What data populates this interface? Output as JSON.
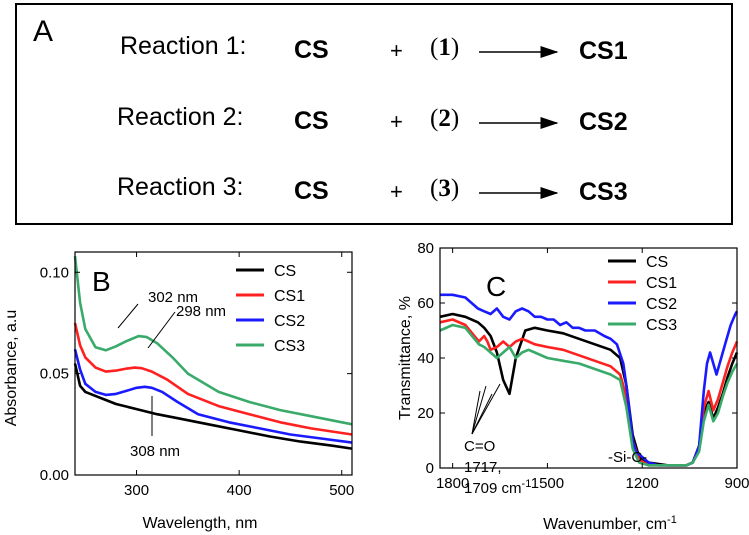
{
  "panel_a": {
    "label": "A",
    "reactions": [
      {
        "name": "Reaction 1:",
        "reactant": "CS",
        "plus": "+",
        "reagent_open": "(",
        "reagent": "1",
        "reagent_close": ")",
        "product": "CS1"
      },
      {
        "name": "Reaction 2:",
        "reactant": "CS",
        "plus": "+",
        "reagent_open": "(",
        "reagent": "2",
        "reagent_close": ")",
        "product": "CS2"
      },
      {
        "name": "Reaction 3:",
        "reactant": "CS",
        "plus": "+",
        "reagent_open": "(",
        "reagent": "3",
        "reagent_close": ")",
        "product": "CS3"
      }
    ]
  },
  "chart_data": [
    {
      "type": "line",
      "panel_label": "B",
      "xlabel": "Wavelength, nm",
      "ylabel": "Absorbance, a.u",
      "xlim": [
        240,
        510
      ],
      "ylim": [
        0,
        0.11
      ],
      "xticks": [
        300,
        400,
        500
      ],
      "yticks": [
        0.0,
        0.05,
        0.1
      ],
      "ytick_labels": [
        "0.00",
        "0.05",
        "0.10"
      ],
      "legend": "top-right",
      "series": [
        {
          "name": "CS",
          "color": "#000000",
          "x": [
            240,
            245,
            250,
            260,
            270,
            280,
            300,
            320,
            340,
            370,
            400,
            430,
            460,
            490,
            510
          ],
          "y": [
            0.055,
            0.044,
            0.041,
            0.039,
            0.037,
            0.035,
            0.0325,
            0.03,
            0.028,
            0.025,
            0.022,
            0.019,
            0.0165,
            0.0145,
            0.013
          ]
        },
        {
          "name": "CS1",
          "color": "#ff2020",
          "x": [
            240,
            245,
            250,
            260,
            270,
            280,
            290,
            298,
            305,
            315,
            330,
            350,
            380,
            410,
            440,
            470,
            510
          ],
          "y": [
            0.075,
            0.064,
            0.058,
            0.053,
            0.051,
            0.0515,
            0.0525,
            0.053,
            0.0527,
            0.051,
            0.047,
            0.04,
            0.034,
            0.03,
            0.026,
            0.023,
            0.02
          ]
        },
        {
          "name": "CS2",
          "color": "#1a1aff",
          "x": [
            240,
            245,
            250,
            260,
            270,
            280,
            290,
            300,
            308,
            315,
            325,
            340,
            360,
            390,
            420,
            450,
            480,
            510
          ],
          "y": [
            0.062,
            0.052,
            0.045,
            0.041,
            0.0395,
            0.04,
            0.0415,
            0.043,
            0.0435,
            0.043,
            0.041,
            0.036,
            0.03,
            0.026,
            0.023,
            0.02,
            0.018,
            0.016
          ]
        },
        {
          "name": "CS3",
          "color": "#3aaa6a",
          "x": [
            240,
            245,
            250,
            260,
            270,
            280,
            290,
            302,
            310,
            320,
            335,
            350,
            380,
            410,
            440,
            470,
            510
          ],
          "y": [
            0.108,
            0.085,
            0.072,
            0.063,
            0.0615,
            0.0635,
            0.066,
            0.0685,
            0.068,
            0.065,
            0.058,
            0.05,
            0.041,
            0.036,
            0.032,
            0.029,
            0.025
          ]
        }
      ],
      "annotations": [
        {
          "text": "302 nm",
          "x": 302,
          "y": 0.0685
        },
        {
          "text": "298 nm",
          "x": 298,
          "y": 0.053
        },
        {
          "text": "308 nm",
          "x": 308,
          "y": 0.0435
        }
      ]
    },
    {
      "type": "line",
      "panel_label": "C",
      "xlabel": "Wavenumber, cm",
      "xlabel_sup": "-1",
      "ylabel": "Transmittance, %",
      "xlim": [
        1840,
        900
      ],
      "ylim": [
        0,
        80
      ],
      "xticks": [
        1800,
        1500,
        1200,
        900
      ],
      "yticks": [
        0,
        20,
        40,
        60,
        80
      ],
      "legend": "top-right",
      "series": [
        {
          "name": "CS",
          "color": "#000000",
          "x": [
            1840,
            1800,
            1760,
            1720,
            1700,
            1680,
            1660,
            1640,
            1620,
            1600,
            1570,
            1540,
            1500,
            1450,
            1400,
            1350,
            1300,
            1270,
            1250,
            1230,
            1210,
            1180,
            1120,
            1080,
            1060,
            1040,
            1020,
            1005,
            990,
            975,
            960,
            945,
            930,
            915,
            900
          ],
          "y": [
            55,
            56,
            55,
            53,
            51,
            48,
            42,
            32,
            27,
            40,
            50,
            51,
            50,
            49,
            47,
            45,
            43,
            40,
            30,
            12,
            4,
            2,
            1,
            1,
            1,
            2,
            8,
            20,
            24,
            18,
            22,
            27,
            33,
            38,
            42
          ]
        },
        {
          "name": "CS1",
          "color": "#ff2020",
          "x": [
            1840,
            1800,
            1760,
            1717,
            1700,
            1690,
            1680,
            1660,
            1640,
            1620,
            1600,
            1580,
            1560,
            1540,
            1500,
            1450,
            1400,
            1350,
            1300,
            1270,
            1250,
            1230,
            1210,
            1180,
            1120,
            1080,
            1060,
            1040,
            1020,
            1005,
            990,
            975,
            960,
            945,
            930,
            915,
            900
          ],
          "y": [
            53,
            54,
            52,
            46,
            48,
            46,
            43,
            44,
            46,
            44,
            46,
            47,
            46,
            45,
            44,
            43,
            41,
            39,
            37,
            34,
            26,
            10,
            3,
            1,
            1,
            1,
            1,
            2,
            8,
            22,
            28,
            21,
            25,
            31,
            37,
            42,
            46
          ]
        },
        {
          "name": "CS2",
          "color": "#1a1aff",
          "x": [
            1840,
            1800,
            1760,
            1740,
            1720,
            1700,
            1680,
            1660,
            1640,
            1620,
            1600,
            1580,
            1560,
            1540,
            1520,
            1500,
            1480,
            1460,
            1440,
            1420,
            1400,
            1380,
            1350,
            1320,
            1300,
            1280,
            1260,
            1250,
            1240,
            1230,
            1220,
            1200,
            1180,
            1150,
            1100,
            1060,
            1040,
            1020,
            1005,
            995,
            985,
            975,
            965,
            950,
            935,
            920,
            905,
            900
          ],
          "y": [
            63,
            63,
            62,
            60,
            58,
            57,
            56,
            58,
            55,
            54,
            57,
            58,
            57,
            55,
            55,
            54,
            54,
            52,
            53,
            51,
            51,
            50,
            50,
            48,
            47,
            45,
            38,
            30,
            20,
            10,
            6,
            4,
            2,
            1,
            1,
            1,
            2,
            8,
            28,
            38,
            42,
            38,
            34,
            40,
            46,
            52,
            56,
            57
          ]
        },
        {
          "name": "CS3",
          "color": "#3aaa6a",
          "x": [
            1840,
            1800,
            1760,
            1717,
            1700,
            1680,
            1660,
            1640,
            1620,
            1600,
            1580,
            1560,
            1540,
            1500,
            1450,
            1400,
            1350,
            1300,
            1270,
            1250,
            1230,
            1210,
            1180,
            1120,
            1080,
            1060,
            1040,
            1020,
            1005,
            990,
            975,
            960,
            945,
            930,
            915,
            900
          ],
          "y": [
            50,
            52,
            51,
            45,
            44,
            42,
            40,
            42,
            44,
            40,
            42,
            43,
            42,
            40,
            39,
            38,
            36,
            34,
            32,
            22,
            7,
            2,
            1,
            1,
            1,
            1,
            2,
            6,
            17,
            23,
            17,
            20,
            26,
            31,
            35,
            38
          ]
        }
      ],
      "annotations": [
        {
          "text": "C=O",
          "x": 1780,
          "y": 20
        },
        {
          "text": "1717,",
          "x": 1780,
          "y": 12
        },
        {
          "text": "1709 cm",
          "sup": "-1",
          "x": 1780,
          "y": 5
        },
        {
          "text": "-Si-C-",
          "x": 1180,
          "y": 5
        }
      ]
    }
  ]
}
